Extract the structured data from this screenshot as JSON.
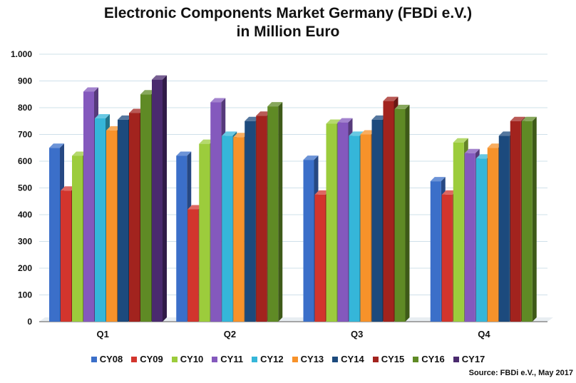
{
  "chart_data": {
    "type": "bar",
    "title_line1": "Electronic Components Market Germany (FBDi e.V.)",
    "title_line2": "in Million Euro",
    "xlabel": "",
    "ylabel": "",
    "ylim": [
      0,
      1000
    ],
    "y_ticks": [
      0,
      100,
      200,
      300,
      400,
      500,
      600,
      700,
      800,
      900,
      1000
    ],
    "y_tick_labels": [
      "0",
      "100",
      "200",
      "300",
      "400",
      "500",
      "600",
      "700",
      "800",
      "900",
      "1.000"
    ],
    "grid": true,
    "legend_position": "bottom",
    "categories": [
      "Q1",
      "Q2",
      "Q3",
      "Q4"
    ],
    "series": [
      {
        "name": "CY08",
        "color": "#3b6fc9",
        "values": [
          650,
          620,
          605,
          525
        ]
      },
      {
        "name": "CY09",
        "color": "#d2352d",
        "values": [
          490,
          420,
          475,
          475
        ]
      },
      {
        "name": "CY10",
        "color": "#9ccc3c",
        "values": [
          620,
          665,
          740,
          670
        ]
      },
      {
        "name": "CY11",
        "color": "#8459bd",
        "values": [
          860,
          820,
          745,
          630
        ]
      },
      {
        "name": "CY12",
        "color": "#35b6d9",
        "values": [
          760,
          695,
          695,
          610
        ]
      },
      {
        "name": "CY13",
        "color": "#f7922a",
        "values": [
          715,
          690,
          700,
          650
        ]
      },
      {
        "name": "CY14",
        "color": "#1c4a7d",
        "values": [
          755,
          750,
          755,
          695
        ]
      },
      {
        "name": "CY15",
        "color": "#a2231e",
        "values": [
          780,
          770,
          825,
          750
        ]
      },
      {
        "name": "CY16",
        "color": "#5f8a25",
        "values": [
          850,
          805,
          795,
          750
        ]
      },
      {
        "name": "CY17",
        "color": "#4a2a6e",
        "values": [
          905,
          null,
          null,
          null
        ]
      }
    ]
  },
  "source_text": "Source: FBDi e.V., May 2017"
}
